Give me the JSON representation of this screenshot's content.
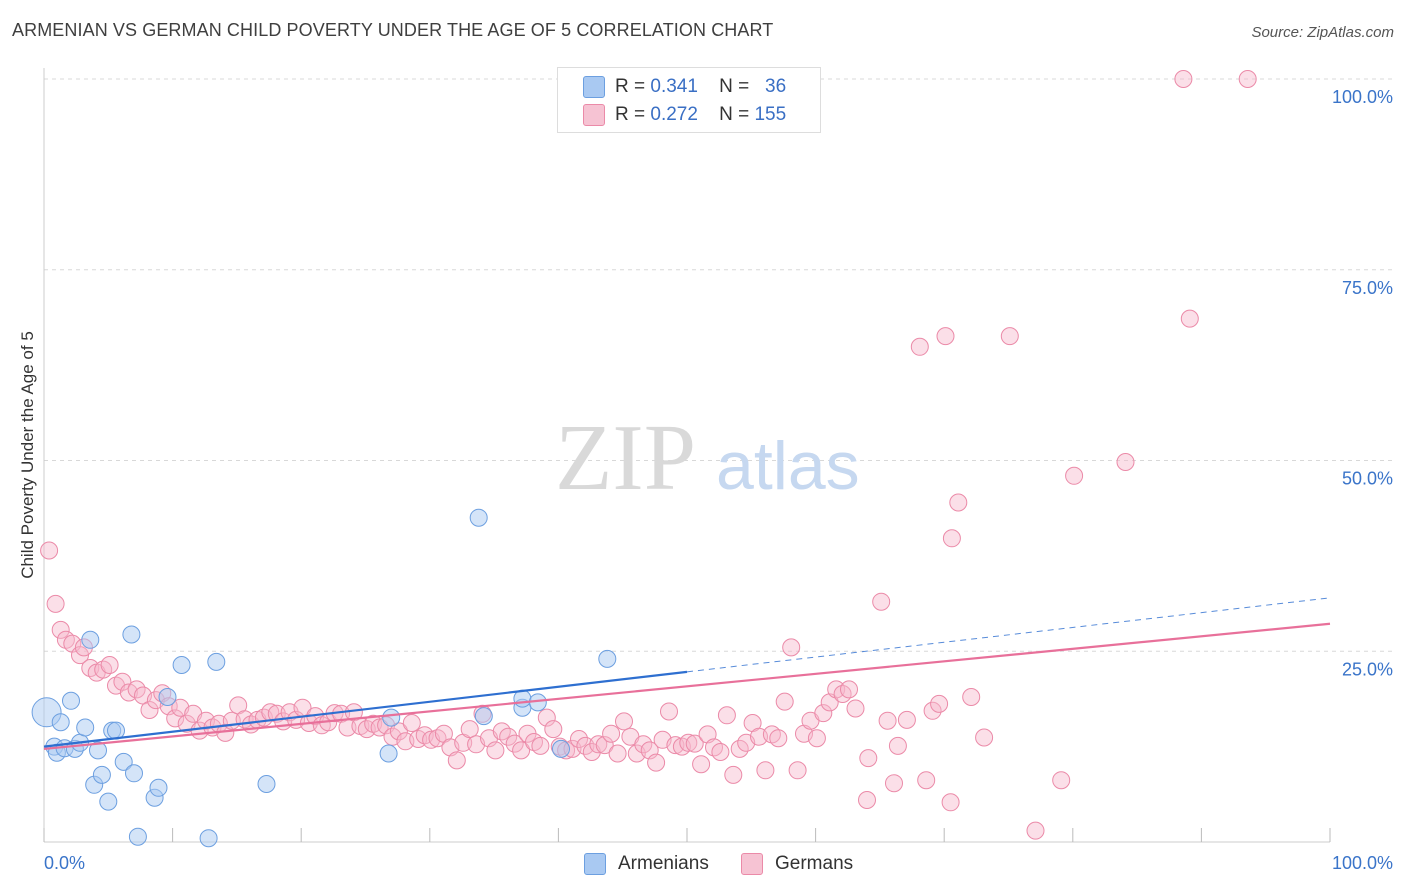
{
  "header": {
    "title": "ARMENIAN VS GERMAN CHILD POVERTY UNDER THE AGE OF 5 CORRELATION CHART",
    "source": "Source: ZipAtlas.com"
  },
  "watermark": {
    "zip": "ZIP",
    "atlas": "atlas"
  },
  "legend": {
    "rows": [
      {
        "r_label": "R =",
        "r_value": "0.341",
        "n_label": "N =",
        "n_value": "36"
      },
      {
        "r_label": "R =",
        "r_value": "0.272",
        "n_label": "N =",
        "n_value": "155"
      }
    ]
  },
  "bottom_legend": {
    "armenians": "Armenians",
    "germans": "Germans"
  },
  "colors": {
    "armenian_fill": "#a9c9f2",
    "armenian_stroke": "#6c9fe0",
    "armenian_line": "#2e6fd0",
    "german_fill": "#f6b8cb",
    "german_stroke": "#eb8aa8",
    "german_line": "#e8709a",
    "axis_text": "#3a74c9",
    "grid": "#d8d8d8"
  },
  "chart_data": {
    "type": "scatter",
    "title": "ARMENIAN VS GERMAN CHILD POVERTY UNDER THE AGE OF 5 CORRELATION CHART",
    "xlabel": "",
    "ylabel": "Child Poverty Under the Age of 5",
    "xlim": [
      0,
      100
    ],
    "ylim": [
      0,
      100
    ],
    "x_tick_labels": [
      "0.0%",
      "100.0%"
    ],
    "y_ticks": [
      25,
      50,
      75,
      100
    ],
    "y_tick_labels": [
      "25.0%",
      "50.0%",
      "75.0%",
      "100.0%"
    ],
    "grid": true,
    "legend_position": "top-center",
    "series": [
      {
        "name": "Armenians",
        "r": 0.341,
        "n": 36,
        "trend": {
          "x0": 0,
          "y0": 12.5,
          "x1": 50,
          "y1": 22.3,
          "dashed_to_x": 100,
          "dashed_to_y": 32.0
        },
        "points": [
          [
            0.2,
            17.0,
            14
          ],
          [
            0.8,
            12.5,
            8
          ],
          [
            1.0,
            11.7,
            8
          ],
          [
            1.3,
            15.7,
            8
          ],
          [
            1.6,
            12.3,
            8
          ],
          [
            2.1,
            18.5,
            8
          ],
          [
            2.4,
            12.2,
            8
          ],
          [
            2.8,
            13.0,
            8
          ],
          [
            3.2,
            15.0,
            8
          ],
          [
            3.6,
            26.5,
            8
          ],
          [
            3.9,
            7.5,
            8
          ],
          [
            4.2,
            12.0,
            8
          ],
          [
            4.5,
            8.8,
            8
          ],
          [
            5.0,
            5.3,
            8
          ],
          [
            5.3,
            14.6,
            8
          ],
          [
            5.6,
            14.6,
            8
          ],
          [
            6.2,
            10.5,
            8
          ],
          [
            6.8,
            27.2,
            8
          ],
          [
            7.0,
            9.0,
            8
          ],
          [
            7.3,
            0.7,
            8
          ],
          [
            8.6,
            5.8,
            8
          ],
          [
            8.9,
            7.1,
            8
          ],
          [
            9.6,
            19.0,
            8
          ],
          [
            10.7,
            23.2,
            8
          ],
          [
            12.8,
            0.5,
            8
          ],
          [
            13.4,
            23.6,
            8
          ],
          [
            17.3,
            7.6,
            8
          ],
          [
            26.8,
            11.6,
            8
          ],
          [
            27.0,
            16.3,
            8
          ],
          [
            33.8,
            42.5,
            8
          ],
          [
            34.2,
            16.5,
            8
          ],
          [
            37.2,
            17.6,
            8
          ],
          [
            37.2,
            18.8,
            8
          ],
          [
            38.4,
            18.3,
            8
          ],
          [
            40.2,
            12.2,
            8
          ],
          [
            43.8,
            24.0,
            8
          ]
        ]
      },
      {
        "name": "Germans",
        "r": 0.272,
        "n": 155,
        "trend": {
          "x0": 0,
          "y0": 12.2,
          "x1": 100,
          "y1": 28.6
        },
        "points": [
          [
            0.4,
            38.2
          ],
          [
            0.9,
            31.2
          ],
          [
            1.3,
            27.8
          ],
          [
            1.7,
            26.5
          ],
          [
            2.2,
            26.0
          ],
          [
            2.8,
            24.5
          ],
          [
            3.1,
            25.5
          ],
          [
            3.6,
            22.8
          ],
          [
            4.1,
            22.2
          ],
          [
            4.6,
            22.6
          ],
          [
            5.1,
            23.2
          ],
          [
            5.6,
            20.5
          ],
          [
            6.1,
            21.0
          ],
          [
            6.6,
            19.6
          ],
          [
            7.2,
            20.0
          ],
          [
            7.7,
            19.2
          ],
          [
            8.2,
            17.3
          ],
          [
            8.7,
            18.6
          ],
          [
            9.2,
            19.5
          ],
          [
            9.7,
            17.8
          ],
          [
            10.2,
            16.2
          ],
          [
            10.6,
            17.6
          ],
          [
            11.1,
            15.5
          ],
          [
            11.6,
            16.8
          ],
          [
            12.1,
            14.6
          ],
          [
            12.6,
            15.9
          ],
          [
            13.1,
            15.0
          ],
          [
            13.6,
            15.5
          ],
          [
            14.1,
            14.3
          ],
          [
            14.6,
            15.9
          ],
          [
            15.1,
            17.9
          ],
          [
            15.6,
            16.1
          ],
          [
            16.1,
            15.4
          ],
          [
            16.6,
            16.0
          ],
          [
            17.1,
            16.3
          ],
          [
            17.6,
            17.0
          ],
          [
            18.1,
            16.8
          ],
          [
            18.6,
            15.8
          ],
          [
            19.1,
            17.0
          ],
          [
            19.6,
            16.0
          ],
          [
            20.1,
            17.6
          ],
          [
            20.6,
            15.6
          ],
          [
            21.1,
            16.5
          ],
          [
            21.6,
            15.3
          ],
          [
            22.1,
            15.7
          ],
          [
            22.6,
            16.9
          ],
          [
            23.1,
            16.8
          ],
          [
            23.6,
            15.0
          ],
          [
            24.1,
            17.0
          ],
          [
            24.6,
            15.2
          ],
          [
            25.1,
            14.8
          ],
          [
            25.6,
            15.5
          ],
          [
            26.1,
            15.0
          ],
          [
            26.6,
            15.3
          ],
          [
            27.1,
            13.8
          ],
          [
            27.6,
            14.5
          ],
          [
            28.1,
            13.2
          ],
          [
            28.6,
            15.6
          ],
          [
            29.1,
            13.5
          ],
          [
            29.6,
            14.0
          ],
          [
            30.1,
            13.4
          ],
          [
            30.6,
            13.6
          ],
          [
            31.1,
            14.2
          ],
          [
            31.6,
            12.4
          ],
          [
            32.1,
            10.7
          ],
          [
            32.6,
            13.0
          ],
          [
            33.1,
            14.8
          ],
          [
            33.6,
            12.8
          ],
          [
            34.1,
            16.8
          ],
          [
            34.6,
            13.6
          ],
          [
            35.1,
            12.0
          ],
          [
            35.6,
            14.5
          ],
          [
            36.1,
            13.8
          ],
          [
            36.6,
            12.9
          ],
          [
            37.1,
            12.0
          ],
          [
            37.6,
            14.2
          ],
          [
            38.1,
            13.1
          ],
          [
            38.6,
            12.6
          ],
          [
            39.1,
            16.3
          ],
          [
            39.6,
            14.8
          ],
          [
            40.1,
            12.5
          ],
          [
            40.6,
            12.0
          ],
          [
            41.1,
            12.2
          ],
          [
            41.6,
            13.5
          ],
          [
            42.1,
            12.6
          ],
          [
            42.6,
            11.8
          ],
          [
            43.1,
            12.8
          ],
          [
            43.6,
            12.7
          ],
          [
            44.1,
            14.2
          ],
          [
            44.6,
            11.6
          ],
          [
            45.1,
            15.8
          ],
          [
            45.6,
            13.8
          ],
          [
            46.1,
            11.6
          ],
          [
            46.6,
            12.8
          ],
          [
            47.1,
            12.0
          ],
          [
            47.6,
            10.4
          ],
          [
            48.1,
            13.4
          ],
          [
            48.6,
            17.1
          ],
          [
            49.1,
            12.7
          ],
          [
            49.6,
            12.5
          ],
          [
            50.1,
            13.0
          ],
          [
            50.6,
            12.9
          ],
          [
            51.1,
            10.2
          ],
          [
            51.6,
            14.1
          ],
          [
            52.1,
            12.4
          ],
          [
            52.6,
            11.8
          ],
          [
            53.1,
            16.6
          ],
          [
            53.6,
            8.8
          ],
          [
            54.1,
            12.2
          ],
          [
            54.6,
            13.0
          ],
          [
            55.1,
            15.6
          ],
          [
            55.6,
            13.8
          ],
          [
            56.1,
            9.4
          ],
          [
            56.6,
            14.1
          ],
          [
            57.1,
            13.6
          ],
          [
            57.6,
            18.4
          ],
          [
            58.1,
            25.5
          ],
          [
            58.6,
            9.4
          ],
          [
            59.1,
            14.2
          ],
          [
            59.6,
            15.9
          ],
          [
            60.1,
            13.6
          ],
          [
            60.6,
            16.9
          ],
          [
            61.1,
            18.3
          ],
          [
            61.6,
            20.0
          ],
          [
            62.1,
            19.4
          ],
          [
            62.6,
            20.0
          ],
          [
            63.1,
            17.5
          ],
          [
            64.1,
            11.0
          ],
          [
            65.1,
            31.5
          ],
          [
            65.6,
            15.9
          ],
          [
            66.1,
            7.7
          ],
          [
            66.4,
            12.6
          ],
          [
            67.1,
            16.0
          ],
          [
            68.1,
            64.9
          ],
          [
            68.6,
            8.1
          ],
          [
            69.1,
            17.2
          ],
          [
            69.6,
            18.1
          ],
          [
            70.1,
            66.3
          ],
          [
            70.6,
            39.8
          ],
          [
            71.1,
            44.5
          ],
          [
            72.1,
            19.0
          ],
          [
            73.1,
            13.7
          ],
          [
            75.1,
            66.3
          ],
          [
            77.1,
            1.5
          ],
          [
            79.1,
            8.1
          ],
          [
            80.1,
            48.0
          ],
          [
            84.1,
            49.8
          ],
          [
            88.6,
            100.0
          ],
          [
            89.1,
            68.6
          ],
          [
            93.6,
            100.0
          ],
          [
            64.0,
            5.5
          ],
          [
            70.5,
            5.2
          ]
        ]
      }
    ]
  }
}
